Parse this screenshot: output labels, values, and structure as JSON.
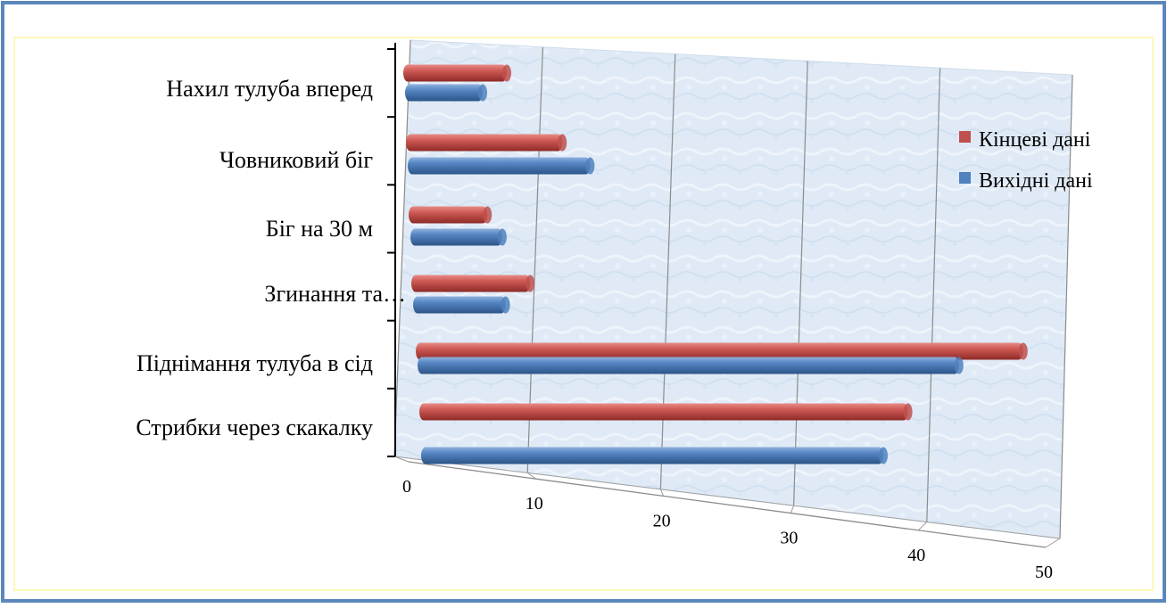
{
  "chart_data": {
    "type": "bar",
    "orientation": "horizontal",
    "style": "3d-cylinder",
    "categories": [
      "Нахил тулуба вперед",
      "Човниковий біг",
      "Біг на 30 м",
      "Згинання та…",
      "Піднімання тулуба в сід",
      "Стрибки через скакалку"
    ],
    "series": [
      {
        "name": "Кінцеві дані",
        "color": "#c0504d",
        "values": [
          8,
          12,
          6,
          9,
          46,
          37
        ]
      },
      {
        "name": "Вихідні дані",
        "color": "#4f81bd",
        "values": [
          6,
          14,
          7,
          7,
          41,
          35
        ]
      }
    ],
    "x_ticks": [
      "0",
      "10",
      "20",
      "30",
      "40",
      "50"
    ],
    "xlim": [
      0,
      50
    ],
    "grid": true,
    "legend_position": "right"
  },
  "colors": {
    "frame_border": "#5b87bd",
    "inner_border": "#fff8b8",
    "wall": "#dde9f5",
    "gridline": "#8c8c8c"
  }
}
